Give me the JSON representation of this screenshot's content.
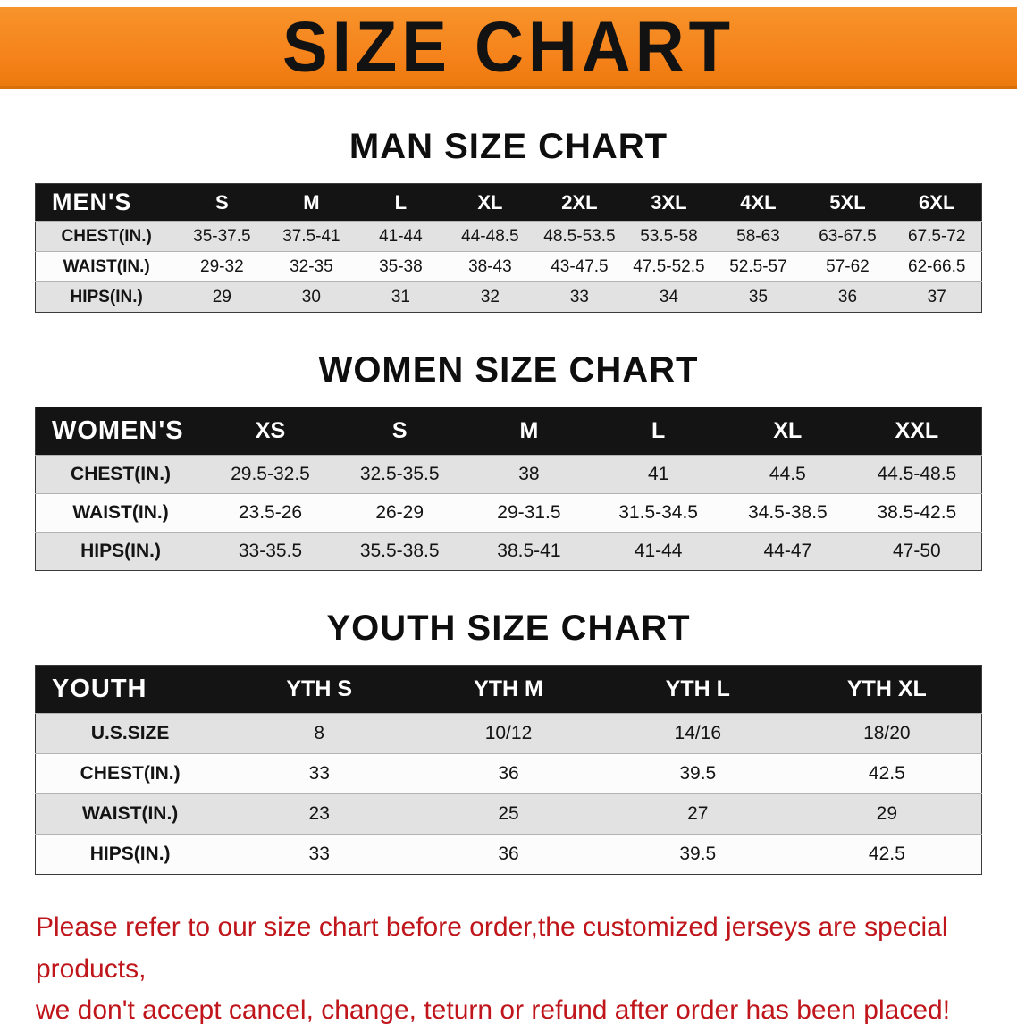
{
  "banner": {
    "title": "SIZE CHART",
    "bg_color": "#f5821a",
    "text_color": "#121212"
  },
  "tables": [
    {
      "heading": "MAN SIZE CHART",
      "corner": "MEN'S",
      "columns": [
        "S",
        "M",
        "L",
        "XL",
        "2XL",
        "3XL",
        "4XL",
        "5XL",
        "6XL"
      ],
      "rows": [
        {
          "label": "CHEST(IN.)",
          "values": [
            "35-37.5",
            "37.5-41",
            "41-44",
            "44-48.5",
            "48.5-53.5",
            "53.5-58",
            "58-63",
            "63-67.5",
            "67.5-72"
          ]
        },
        {
          "label": "WAIST(IN.)",
          "values": [
            "29-32",
            "32-35",
            "35-38",
            "38-43",
            "43-47.5",
            "47.5-52.5",
            "52.5-57",
            "57-62",
            "62-66.5"
          ]
        },
        {
          "label": "HIPS(IN.)",
          "values": [
            "29",
            "30",
            "31",
            "32",
            "33",
            "34",
            "35",
            "36",
            "37"
          ]
        }
      ]
    },
    {
      "heading": "WOMEN SIZE CHART",
      "corner": "WOMEN'S",
      "columns": [
        "XS",
        "S",
        "M",
        "L",
        "XL",
        "XXL"
      ],
      "rows": [
        {
          "label": "CHEST(IN.)",
          "values": [
            "29.5-32.5",
            "32.5-35.5",
            "38",
            "41",
            "44.5",
            "44.5-48.5"
          ]
        },
        {
          "label": "WAIST(IN.)",
          "values": [
            "23.5-26",
            "26-29",
            "29-31.5",
            "31.5-34.5",
            "34.5-38.5",
            "38.5-42.5"
          ]
        },
        {
          "label": "HIPS(IN.)",
          "values": [
            "33-35.5",
            "35.5-38.5",
            "38.5-41",
            "41-44",
            "44-47",
            "47-50"
          ]
        }
      ]
    },
    {
      "heading": "YOUTH SIZE CHART",
      "corner": "YOUTH",
      "columns": [
        "YTH S",
        "YTH M",
        "YTH L",
        "YTH XL"
      ],
      "rows": [
        {
          "label": "U.S.SIZE",
          "values": [
            "8",
            "10/12",
            "14/16",
            "18/20"
          ]
        },
        {
          "label": "CHEST(IN.)",
          "values": [
            "33",
            "36",
            "39.5",
            "42.5"
          ]
        },
        {
          "label": "WAIST(IN.)",
          "values": [
            "23",
            "25",
            "27",
            "29"
          ]
        },
        {
          "label": "HIPS(IN.)",
          "values": [
            "33",
            "36",
            "39.5",
            "42.5"
          ]
        }
      ]
    }
  ],
  "footer": {
    "line1": "Please refer to our size chart before order,the customized jerseys are special products,",
    "line2": "we don't accept cancel, change, teturn or refund after order has been placed!",
    "text_color": "#bf151b"
  }
}
